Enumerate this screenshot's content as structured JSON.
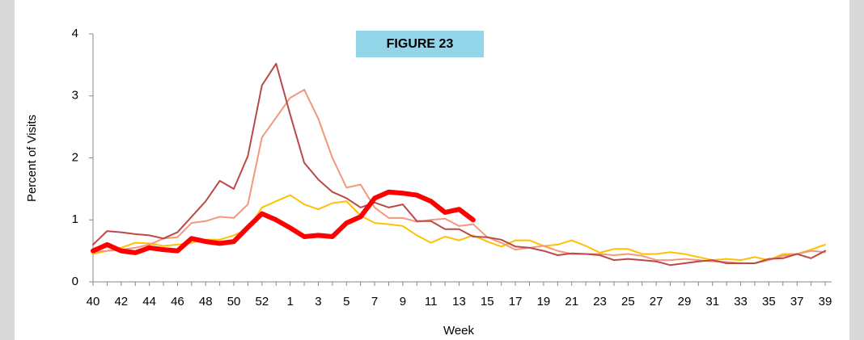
{
  "chart_data": {
    "type": "line",
    "title": "FIGURE 23",
    "x_label": "Week",
    "y_label": "Percent of Visits",
    "categories": [
      40,
      null,
      42,
      null,
      44,
      null,
      46,
      null,
      48,
      null,
      50,
      null,
      52,
      null,
      1,
      null,
      3,
      null,
      5,
      null,
      7,
      null,
      9,
      null,
      11,
      null,
      13,
      null,
      15,
      null,
      17,
      null,
      19,
      null,
      21,
      null,
      23,
      null,
      25,
      null,
      27,
      null,
      29,
      null,
      31,
      null,
      33,
      null,
      35,
      null,
      37,
      null,
      39
    ],
    "ylim": [
      0,
      4
    ],
    "yticks": [
      0,
      1,
      2,
      3,
      4
    ],
    "grid": false,
    "series": [
      {
        "color": "#ffc000",
        "values": [
          0.45,
          0.5,
          0.55,
          0.63,
          0.62,
          0.58,
          0.6,
          0.63,
          0.68,
          0.68,
          0.75,
          0.85,
          1.2,
          1.3,
          1.4,
          1.25,
          1.17,
          1.27,
          1.3,
          1.07,
          0.95,
          0.93,
          0.9,
          0.75,
          0.63,
          0.73,
          0.67,
          0.75,
          0.65,
          0.57,
          0.67,
          0.67,
          0.58,
          0.6,
          0.67,
          0.58,
          0.47,
          0.53,
          0.53,
          0.45,
          0.45,
          0.48,
          0.45,
          0.4,
          0.35,
          0.37,
          0.35,
          0.4,
          0.35,
          0.45,
          0.45,
          0.52,
          0.6
        ]
      },
      {
        "color": "#f4977b",
        "values": [
          0.48,
          0.5,
          0.52,
          0.55,
          0.6,
          0.7,
          0.72,
          0.95,
          0.98,
          1.05,
          1.03,
          1.25,
          2.33,
          2.65,
          2.97,
          3.1,
          2.63,
          2.0,
          1.52,
          1.57,
          1.2,
          1.03,
          1.03,
          0.97,
          1.0,
          1.02,
          0.9,
          0.93,
          0.72,
          0.63,
          0.52,
          0.55,
          0.58,
          0.5,
          0.45,
          0.45,
          0.45,
          0.43,
          0.45,
          0.42,
          0.35,
          0.35,
          0.37,
          0.35,
          0.33,
          0.32,
          0.3,
          0.3,
          0.35,
          0.42,
          0.45,
          0.5,
          0.48
        ]
      },
      {
        "color": "#b94a48",
        "values": [
          0.6,
          0.82,
          0.8,
          0.77,
          0.75,
          0.7,
          0.8,
          1.05,
          1.3,
          1.63,
          1.5,
          2.03,
          3.17,
          3.52,
          2.7,
          1.92,
          1.65,
          1.45,
          1.35,
          1.2,
          1.28,
          1.2,
          1.25,
          0.98,
          0.98,
          0.85,
          0.85,
          0.73,
          0.72,
          0.68,
          0.57,
          0.55,
          0.5,
          0.43,
          0.46,
          0.45,
          0.43,
          0.35,
          0.37,
          0.35,
          0.33,
          0.27,
          0.3,
          0.33,
          0.35,
          0.3,
          0.3,
          0.3,
          0.37,
          0.38,
          0.45,
          0.38,
          0.5
        ]
      },
      {
        "color": "#ff0000",
        "values": [
          0.5,
          0.6,
          0.5,
          0.47,
          0.55,
          0.52,
          0.5,
          0.7,
          0.65,
          0.62,
          0.65,
          0.88,
          1.1,
          1.0,
          0.87,
          0.73,
          0.75,
          0.73,
          0.95,
          1.05,
          1.35,
          1.45,
          1.43,
          1.4,
          1.3,
          1.12,
          1.17,
          1.0,
          null,
          null,
          null,
          null,
          null,
          null,
          null,
          null,
          null,
          null,
          null,
          null,
          null,
          null,
          null,
          null,
          null,
          null,
          null,
          null,
          null,
          null,
          null,
          null,
          null
        ]
      }
    ]
  }
}
